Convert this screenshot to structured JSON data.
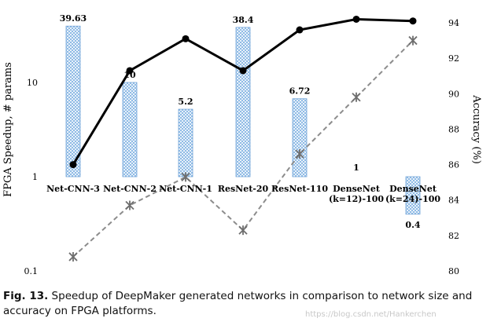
{
  "chart_data": {
    "type": "bar",
    "categories": [
      "Net-CNN-3",
      "Net-CNN-2",
      "Net-CNN-1",
      "ResNet-20",
      "ResNet-110",
      "DenseNet\n(k=12)-100",
      "DenseNet\n(k=24)-100"
    ],
    "series": [
      {
        "axis": "left",
        "kind": "bar",
        "values": [
          39.63,
          10,
          5.2,
          38.4,
          6.72,
          1,
          0.4
        ],
        "data_labels": [
          "39.63",
          "10",
          "5.2",
          "38.4",
          "6.72",
          "1",
          "0.4"
        ]
      },
      {
        "axis": "right",
        "kind": "line",
        "style": "solid",
        "values": [
          86.0,
          91.3,
          93.1,
          91.3,
          93.6,
          94.2,
          94.1
        ]
      },
      {
        "axis": "right",
        "kind": "line",
        "style": "dashed",
        "values": [
          80.8,
          83.7,
          85.3,
          82.3,
          86.6,
          89.8,
          93.0
        ]
      }
    ],
    "ylabel": "FPGA Speedup, # params",
    "ylabel_right": "Accuracy (%)",
    "yscale": "log",
    "ylim": [
      0.1,
      100
    ],
    "yticks": [
      "0.1",
      "1",
      "10"
    ],
    "y2lim": [
      80,
      95
    ],
    "y2ticks": [
      "80",
      "82",
      "84",
      "86",
      "88",
      "90",
      "92",
      "94"
    ],
    "grid": false,
    "colors": {
      "bar_stroke": "#6fa2d8",
      "bar_hatch": "#7aaee0",
      "solid_line": "#000000",
      "dashed_line": "#8c8c8c"
    }
  },
  "caption": {
    "label": "Fig. 13.",
    "text": " Speedup of DeepMaker generated networks in comparison to network size and accuracy on FPGA platforms."
  },
  "watermark": "https://blog.csdn.net/Hankerchen"
}
